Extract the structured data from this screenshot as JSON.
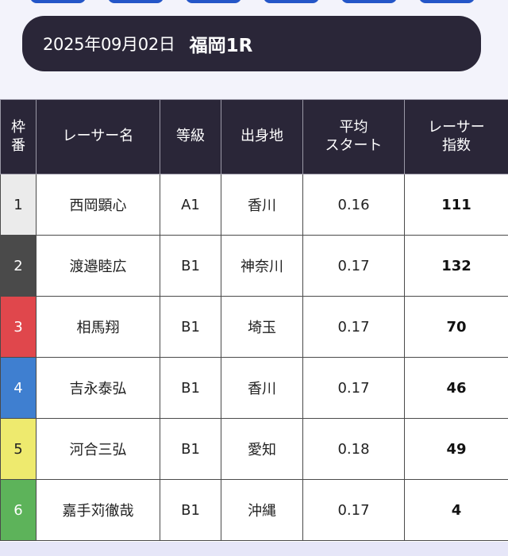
{
  "race": {
    "date": "2025年09月02日",
    "name": "福岡1R"
  },
  "table": {
    "headers": {
      "frame_line1": "枠",
      "frame_line2": "番",
      "name": "レーサー名",
      "class": "等級",
      "hometown": "出身地",
      "avg_start_line1": "平均",
      "avg_start_line2": "スタート",
      "index_line1": "レーサー",
      "index_line2": "指数"
    },
    "rows": [
      {
        "frame": "1",
        "name": "西岡顕心",
        "class": "A1",
        "hometown": "香川",
        "avg_start": "0.16",
        "index": "111",
        "frame_color": "#ebebeb",
        "frame_text_color": "#222222"
      },
      {
        "frame": "2",
        "name": "渡邉睦広",
        "class": "B1",
        "hometown": "神奈川",
        "avg_start": "0.17",
        "index": "132",
        "frame_color": "#4a4a4a",
        "frame_text_color": "#ffffff"
      },
      {
        "frame": "3",
        "name": "相馬翔",
        "class": "B1",
        "hometown": "埼玉",
        "avg_start": "0.17",
        "index": "70",
        "frame_color": "#e0474c",
        "frame_text_color": "#ffffff"
      },
      {
        "frame": "4",
        "name": "吉永泰弘",
        "class": "B1",
        "hometown": "香川",
        "avg_start": "0.17",
        "index": "46",
        "frame_color": "#3f7fd0",
        "frame_text_color": "#ffffff"
      },
      {
        "frame": "5",
        "name": "河合三弘",
        "class": "B1",
        "hometown": "愛知",
        "avg_start": "0.18",
        "index": "49",
        "frame_color": "#eeea6e",
        "frame_text_color": "#222222"
      },
      {
        "frame": "6",
        "name": "嘉手苅徹哉",
        "class": "B1",
        "hometown": "沖縄",
        "avg_start": "0.17",
        "index": "4",
        "frame_color": "#5db35a",
        "frame_text_color": "#ffffff"
      }
    ]
  },
  "colors": {
    "header_bg": "#2a2638",
    "tab_accent": "#2456c8"
  }
}
